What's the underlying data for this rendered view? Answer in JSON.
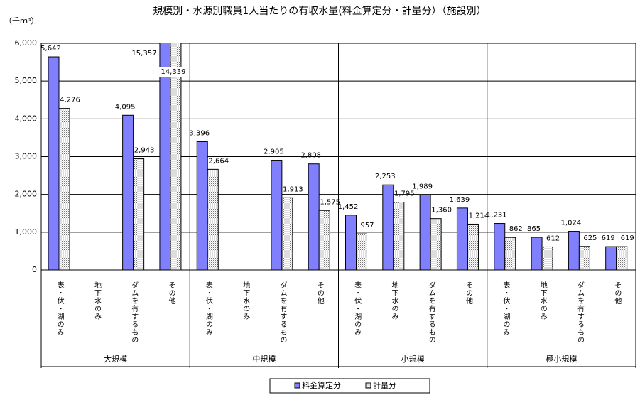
{
  "chart_data": {
    "type": "bar",
    "title": "規模別・水源別職員1人当たりの有収水量(料金算定分・計量分）（施設別）",
    "y_unit": "（千ｍ³）",
    "groups": [
      "大規模",
      "中規模",
      "小規模",
      "極小規模"
    ],
    "categories": [
      "表・伏・湖のみ",
      "地下水のみ",
      "ダムを有するもの",
      "その他",
      "表・伏・湖のみ",
      "地下水のみ",
      "ダムを有するもの",
      "その他",
      "表・伏・湖のみ",
      "地下水のみ",
      "ダムを有するもの",
      "その他",
      "表・伏・湖のみ",
      "地下水のみ",
      "ダムを有するもの",
      "その他"
    ],
    "series": [
      {
        "name": "料金算定分",
        "color": "#8080ff",
        "values": [
          5642,
          null,
          4095,
          15357,
          3396,
          null,
          2905,
          2808,
          1452,
          2253,
          1989,
          1639,
          1231,
          865,
          1024,
          619
        ],
        "value_labels": [
          "5,642",
          null,
          "4,095",
          "15,357",
          "3,396",
          null,
          "2,905",
          "2,808",
          "1,452",
          "2,253",
          "1,989",
          "1,639",
          "1,231",
          "865",
          "1,024",
          "619"
        ]
      },
      {
        "name": "計量分",
        "color": "#d8d8d8",
        "values": [
          4276,
          null,
          2943,
          14339,
          2664,
          null,
          1913,
          1575,
          957,
          1795,
          1360,
          1214,
          862,
          612,
          625,
          619
        ],
        "value_labels": [
          "4,276",
          null,
          "2,943",
          "14,339",
          "2,664",
          null,
          "1,913",
          "1,575",
          "957",
          "1,795",
          "1,360",
          "1,214",
          "862",
          "612",
          "625",
          "619"
        ]
      }
    ],
    "ylim": [
      0,
      6000
    ],
    "yticks": [
      0,
      {
        "value": 1000,
        "label": "1,000"
      },
      {
        "value": 2000,
        "label": "2,000"
      },
      {
        "value": 3000,
        "label": "3,000"
      },
      {
        "value": 4000,
        "label": "4,000"
      },
      {
        "value": 5000,
        "label": "5,000"
      },
      {
        "value": 6000,
        "label": "6,000"
      }
    ],
    "grid": true
  }
}
